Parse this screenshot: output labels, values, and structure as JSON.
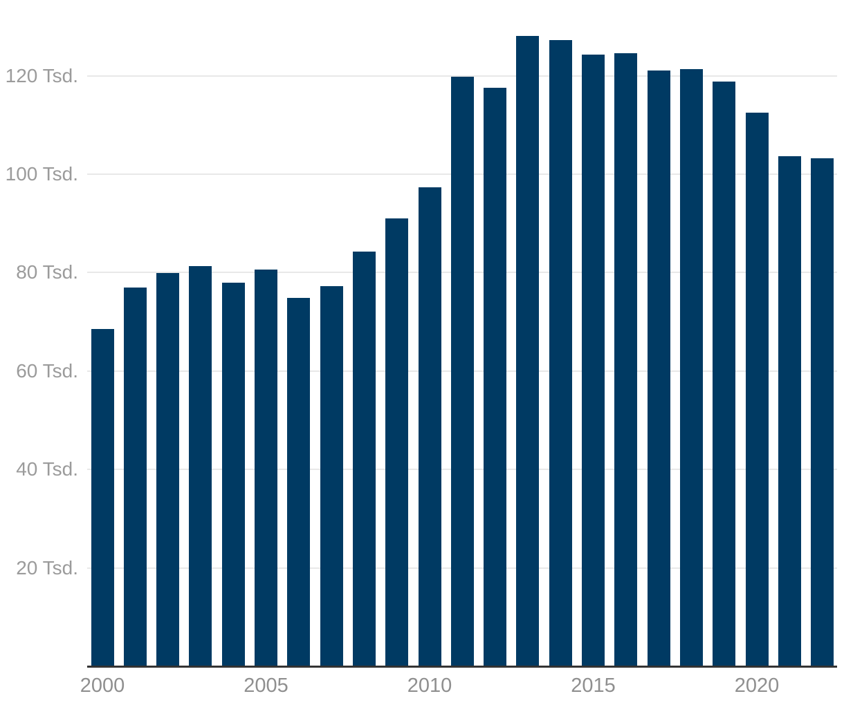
{
  "chart_data": {
    "type": "bar",
    "title": "",
    "unit": "Tsd.",
    "categories": [
      "2000",
      "2001",
      "2002",
      "2003",
      "2004",
      "2005",
      "2006",
      "2007",
      "2008",
      "2009",
      "2010",
      "2011",
      "2012",
      "2013",
      "2014",
      "2015",
      "2016",
      "2017",
      "2018",
      "2019",
      "2020",
      "2021",
      "2022"
    ],
    "values": [
      68.5,
      77.0,
      79.9,
      81.3,
      78.0,
      80.6,
      74.8,
      77.2,
      84.3,
      91.0,
      97.4,
      119.8,
      117.6,
      128.1,
      127.3,
      124.3,
      124.6,
      121.1,
      121.3,
      118.8,
      112.5,
      103.7,
      103.2
    ],
    "xlabel": "",
    "ylabel": "",
    "ylim": [
      0,
      135
    ],
    "grid": true,
    "legend": "none",
    "y_ticks": [
      {
        "value": 20,
        "label": "20 Tsd."
      },
      {
        "value": 40,
        "label": "40 Tsd."
      },
      {
        "value": 60,
        "label": "60 Tsd."
      },
      {
        "value": 80,
        "label": "80 Tsd."
      },
      {
        "value": 100,
        "label": "100 Tsd."
      },
      {
        "value": 120,
        "label": "120 Tsd."
      }
    ],
    "x_tick_labels": [
      "2000",
      "2005",
      "2010",
      "2015",
      "2020"
    ],
    "colors": {
      "bar": "#003a63",
      "gridline": "#e8e8e8",
      "axis_line": "#333333",
      "tick_label": "#9b9b9b"
    }
  }
}
